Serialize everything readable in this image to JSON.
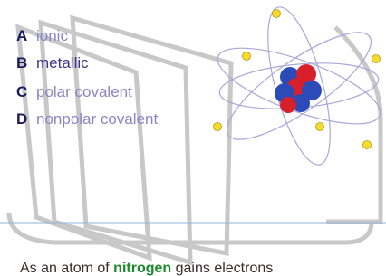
{
  "options": [
    {
      "letter": "A",
      "text": "ionic"
    },
    {
      "letter": "B",
      "text": "metallic"
    },
    {
      "letter": "C",
      "text": "polar covalent"
    },
    {
      "letter": "D",
      "text": "nonpolar covalent"
    }
  ],
  "question": {
    "lead": "As an atom of",
    "keyword": "nitrogen",
    "rest": "gains electrons"
  }
}
